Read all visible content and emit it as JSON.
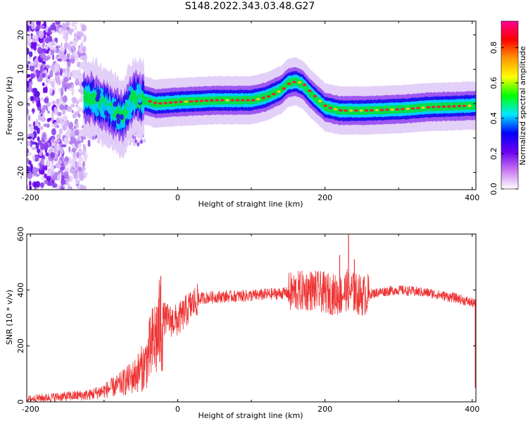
{
  "chart_data": [
    {
      "type": "heatmap",
      "title": "S148.2022.343.03.48.G27",
      "xlabel": "Height of straight line (km)",
      "ylabel": "Frequency (Hz)",
      "xlim": [
        -205,
        405
      ],
      "ylim": [
        -25,
        24
      ],
      "x_ticks": [
        "-200",
        "0",
        "200",
        "400"
      ],
      "y_ticks": [
        "20",
        "10",
        "0",
        "-10",
        "-20"
      ],
      "colorbar": {
        "label": "Normalized spectral amplitude",
        "range": [
          0,
          0.95
        ],
        "ticks": [
          "0.0",
          "0.2",
          "0.4",
          "0.6",
          "0.8"
        ],
        "colors": [
          "#ffffff",
          "#c878f0",
          "#6b00f0",
          "#0000ff",
          "#00e8ff",
          "#00ff00",
          "#ffff00",
          "#ff9900",
          "#ff0000",
          "#ff0090"
        ]
      },
      "ridge": {
        "x": [
          -130,
          -110,
          -90,
          -75,
          -60,
          -45,
          -30,
          0,
          50,
          100,
          120,
          140,
          150,
          160,
          170,
          180,
          190,
          200,
          220,
          250,
          280,
          310,
          340,
          370,
          405
        ],
        "y": [
          2,
          1,
          -2,
          -4,
          2,
          1,
          0,
          0.5,
          1,
          1,
          2,
          4,
          6,
          6.5,
          5.5,
          3,
          1,
          -1,
          -2,
          -2,
          -1.8,
          -1.5,
          -1,
          -0.8,
          -0.5
        ]
      },
      "noise_region": {
        "x": [
          -205,
          -125
        ],
        "y": [
          -25,
          24
        ]
      }
    },
    {
      "type": "line",
      "xlabel": "Height of straight line (km)",
      "ylabel": "SNR (10 * v/v)",
      "xlim": [
        -205,
        405
      ],
      "ylim": [
        0,
        600
      ],
      "x_ticks": [
        "-200",
        "0",
        "200",
        "400"
      ],
      "y_ticks": [
        "600",
        "400",
        "200",
        "0"
      ],
      "color": "#ee3333",
      "x": [
        -205,
        -180,
        -150,
        -120,
        -100,
        -80,
        -60,
        -45,
        -35,
        -25,
        -20,
        -10,
        0,
        10,
        20,
        30,
        50,
        100,
        150,
        180,
        200,
        220,
        230,
        250,
        280,
        300,
        340,
        380,
        405
      ],
      "y": [
        10,
        15,
        20,
        25,
        40,
        60,
        90,
        130,
        200,
        260,
        300,
        290,
        290,
        320,
        350,
        370,
        375,
        380,
        390,
        400,
        390,
        380,
        400,
        380,
        395,
        400,
        390,
        370,
        350
      ],
      "spikes": [
        {
          "x": -23,
          "y": 450
        },
        {
          "x": 220,
          "y": 525
        },
        {
          "x": 232,
          "y": 600
        },
        {
          "x": 240,
          "y": 510
        }
      ]
    }
  ]
}
